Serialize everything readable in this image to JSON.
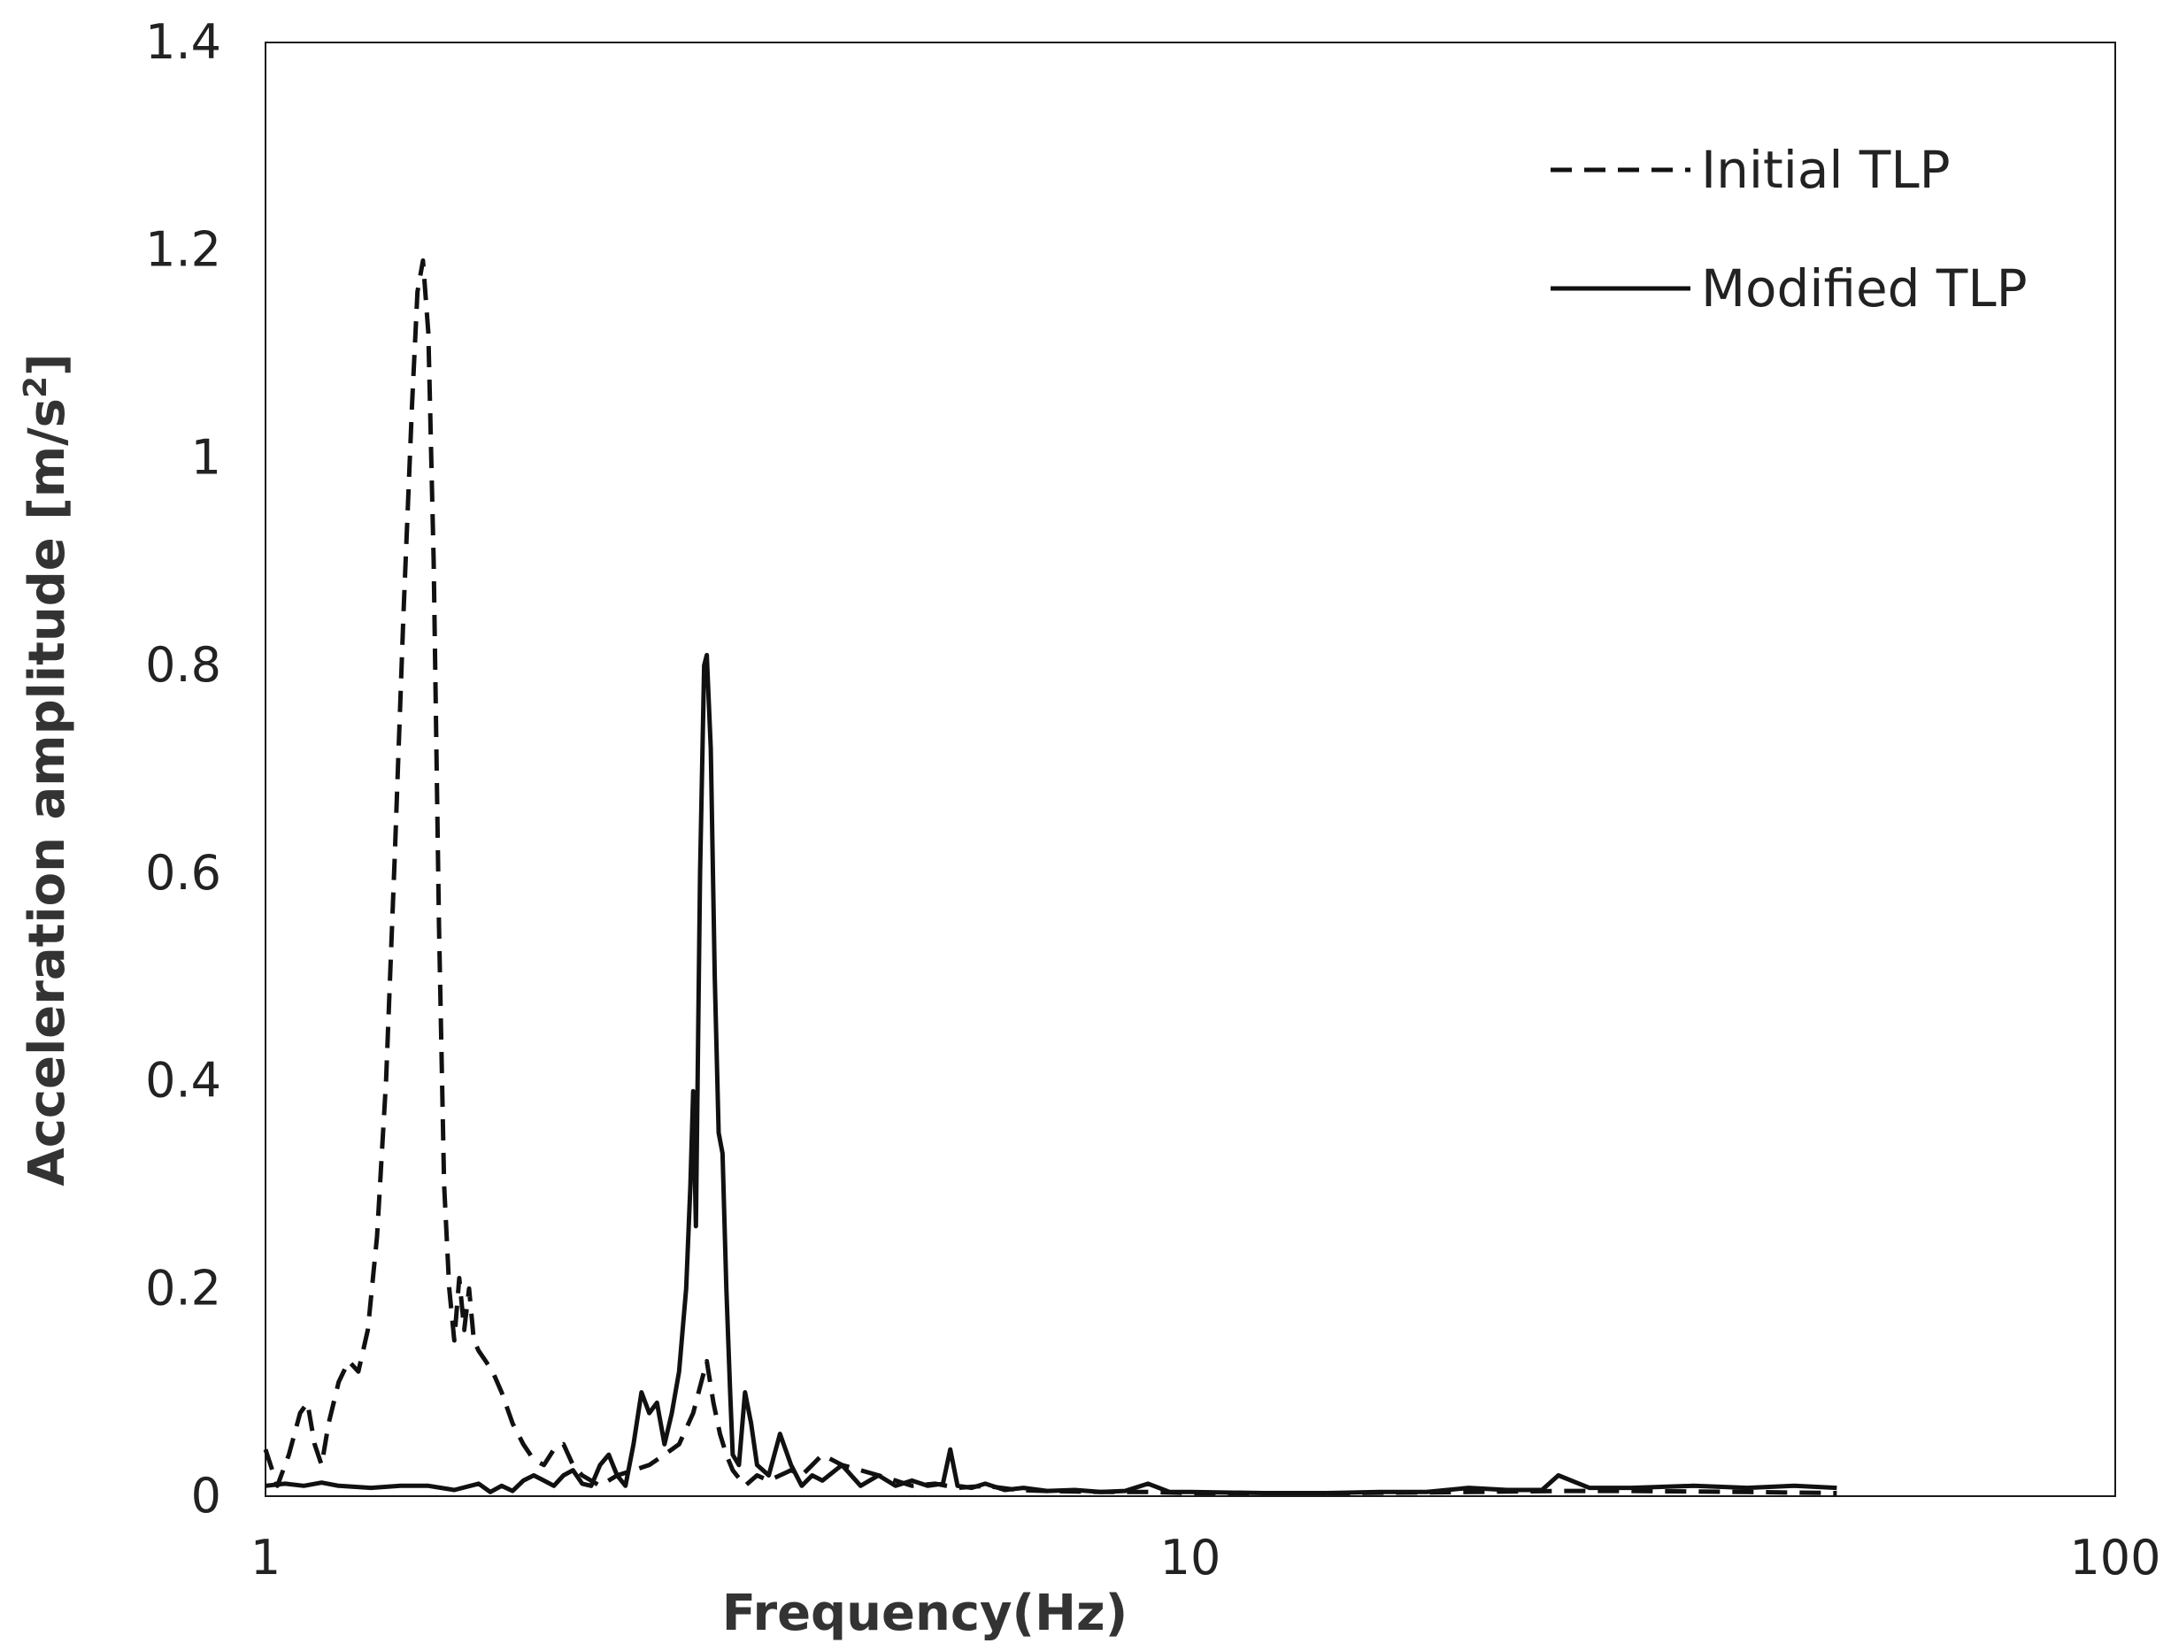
{
  "chart_data": {
    "type": "line",
    "title": "",
    "xlabel": "Frequency(Hz)",
    "ylabel": "Acceleration amplitude [m/s",
    "ylabel_superscript": "2",
    "ylabel_suffix": "]",
    "x_scale": "log",
    "xlim": [
      1,
      100
    ],
    "ylim": [
      0,
      1.4
    ],
    "x_ticks": [
      1,
      10,
      100
    ],
    "x_tick_labels": [
      "1",
      "10",
      "100"
    ],
    "y_ticks": [
      0,
      0.2,
      0.4,
      0.6,
      0.8,
      1.0,
      1.2,
      1.4
    ],
    "y_tick_labels": [
      "0",
      "0.2",
      "0.4",
      "0.6",
      "0.8",
      "1",
      "1.2",
      "1.4"
    ],
    "grid": false,
    "legend_position": "top-right",
    "series": [
      {
        "name": "Initial TLP",
        "style": "dashed",
        "color": "#111111",
        "x": [
          1.0,
          1.03,
          1.06,
          1.09,
          1.11,
          1.13,
          1.15,
          1.17,
          1.2,
          1.23,
          1.26,
          1.29,
          1.32,
          1.35,
          1.38,
          1.41,
          1.44,
          1.46,
          1.48,
          1.5,
          1.52,
          1.54,
          1.56,
          1.58,
          1.6,
          1.62,
          1.64,
          1.66,
          1.68,
          1.7,
          1.73,
          1.76,
          1.8,
          1.85,
          1.9,
          1.95,
          2.0,
          2.05,
          2.1,
          2.15,
          2.2,
          2.3,
          2.4,
          2.5,
          2.6,
          2.7,
          2.8,
          2.9,
          3.0,
          3.05,
          3.1,
          3.15,
          3.2,
          3.3,
          3.4,
          3.5,
          3.6,
          3.7,
          3.8,
          3.9,
          4.0,
          4.2,
          4.4,
          4.6,
          4.8,
          5.0,
          5.3,
          5.6,
          6.0,
          6.5,
          7.0,
          8.0,
          9.0,
          10.0,
          15.0,
          20.0,
          25.0,
          30.0,
          40.0,
          50.0
        ],
        "y": [
          0.045,
          0.01,
          0.04,
          0.08,
          0.09,
          0.05,
          0.03,
          0.07,
          0.11,
          0.13,
          0.12,
          0.16,
          0.25,
          0.4,
          0.62,
          0.85,
          1.05,
          1.16,
          1.19,
          1.12,
          0.9,
          0.55,
          0.3,
          0.2,
          0.15,
          0.21,
          0.16,
          0.2,
          0.15,
          0.14,
          0.13,
          0.12,
          0.1,
          0.07,
          0.05,
          0.035,
          0.03,
          0.045,
          0.05,
          0.03,
          0.02,
          0.01,
          0.02,
          0.025,
          0.03,
          0.04,
          0.05,
          0.08,
          0.13,
          0.09,
          0.06,
          0.04,
          0.025,
          0.01,
          0.02,
          0.015,
          0.02,
          0.025,
          0.02,
          0.03,
          0.04,
          0.03,
          0.025,
          0.02,
          0.015,
          0.01,
          0.012,
          0.008,
          0.01,
          0.006,
          0.005,
          0.004,
          0.004,
          0.003,
          0.003,
          0.004,
          0.005,
          0.005,
          0.004,
          0.003
        ]
      },
      {
        "name": "Modified TLP",
        "style": "solid",
        "color": "#111111",
        "x": [
          1.0,
          1.05,
          1.1,
          1.15,
          1.2,
          1.3,
          1.4,
          1.5,
          1.6,
          1.7,
          1.75,
          1.8,
          1.85,
          1.9,
          1.95,
          2.0,
          2.05,
          2.1,
          2.15,
          2.2,
          2.25,
          2.3,
          2.35,
          2.4,
          2.45,
          2.5,
          2.55,
          2.6,
          2.65,
          2.7,
          2.75,
          2.8,
          2.85,
          2.88,
          2.9,
          2.92,
          2.95,
          2.98,
          3.0,
          3.03,
          3.06,
          3.09,
          3.12,
          3.15,
          3.18,
          3.2,
          3.25,
          3.3,
          3.35,
          3.4,
          3.5,
          3.6,
          3.7,
          3.8,
          3.9,
          4.0,
          4.2,
          4.4,
          4.6,
          4.8,
          5.0,
          5.2,
          5.4,
          5.5,
          5.6,
          5.8,
          6.0,
          6.3,
          6.6,
          7.0,
          7.5,
          8.0,
          8.5,
          9.0,
          9.5,
          10.0,
          12.0,
          14.0,
          16.0,
          18.0,
          20.0,
          22.0,
          24.0,
          25.0,
          27.0,
          30.0,
          35.0,
          40.0,
          45.0,
          50.0
        ],
        "y": [
          0.01,
          0.012,
          0.01,
          0.013,
          0.01,
          0.008,
          0.01,
          0.01,
          0.006,
          0.012,
          0.004,
          0.01,
          0.005,
          0.015,
          0.02,
          0.015,
          0.01,
          0.02,
          0.025,
          0.012,
          0.01,
          0.03,
          0.04,
          0.02,
          0.01,
          0.05,
          0.1,
          0.08,
          0.09,
          0.05,
          0.08,
          0.12,
          0.2,
          0.3,
          0.39,
          0.26,
          0.6,
          0.8,
          0.81,
          0.72,
          0.5,
          0.35,
          0.33,
          0.2,
          0.1,
          0.04,
          0.03,
          0.1,
          0.07,
          0.03,
          0.02,
          0.06,
          0.03,
          0.01,
          0.02,
          0.015,
          0.03,
          0.01,
          0.02,
          0.01,
          0.015,
          0.01,
          0.012,
          0.045,
          0.01,
          0.008,
          0.012,
          0.006,
          0.008,
          0.005,
          0.006,
          0.004,
          0.005,
          0.012,
          0.004,
          0.004,
          0.003,
          0.003,
          0.004,
          0.004,
          0.008,
          0.006,
          0.006,
          0.02,
          0.008,
          0.008,
          0.01,
          0.008,
          0.01,
          0.008
        ]
      }
    ]
  }
}
